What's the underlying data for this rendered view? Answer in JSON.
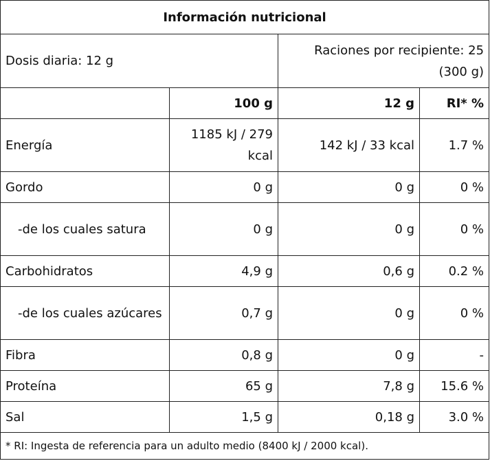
{
  "title": "Información nutricional",
  "daily_dose": "Dosis diaria: 12 g",
  "servings": "Raciones por recipiente: 25 (300 g)",
  "columns": [
    "100 g",
    "12 g",
    "RI* %"
  ],
  "rows": [
    {
      "name": "Energía",
      "per100": "1185 kJ / 279 kcal",
      "per12": "142 kJ / 33 kcal",
      "ri": "1.7 %"
    },
    {
      "name": "Gordo",
      "per100": "0 g",
      "per12": "0 g",
      "ri": "0 %"
    },
    {
      "name": "-de los cuales satura",
      "per100": "0 g",
      "per12": "0 g",
      "ri": "0 %"
    },
    {
      "name": "Carbohidratos",
      "per100": "4,9 g",
      "per12": "0,6 g",
      "ri": "0.2 %"
    },
    {
      "name": "-de los cuales azúcares",
      "per100": "0,7 g",
      "per12": "0 g",
      "ri": "0 %"
    },
    {
      "name": "Fibra",
      "per100": "0,8 g",
      "per12": "0 g",
      "ri": "-"
    },
    {
      "name": "Proteína",
      "per100": "65 g",
      "per12": "7,8 g",
      "ri": "15.6 %"
    },
    {
      "name": "Sal",
      "per100": "1,5 g",
      "per12": "0,18 g",
      "ri": "3.0 %"
    }
  ],
  "footnote": "* RI: Ingesta de referencia para un adulto medio (8400 kJ / 2000 kcal)."
}
